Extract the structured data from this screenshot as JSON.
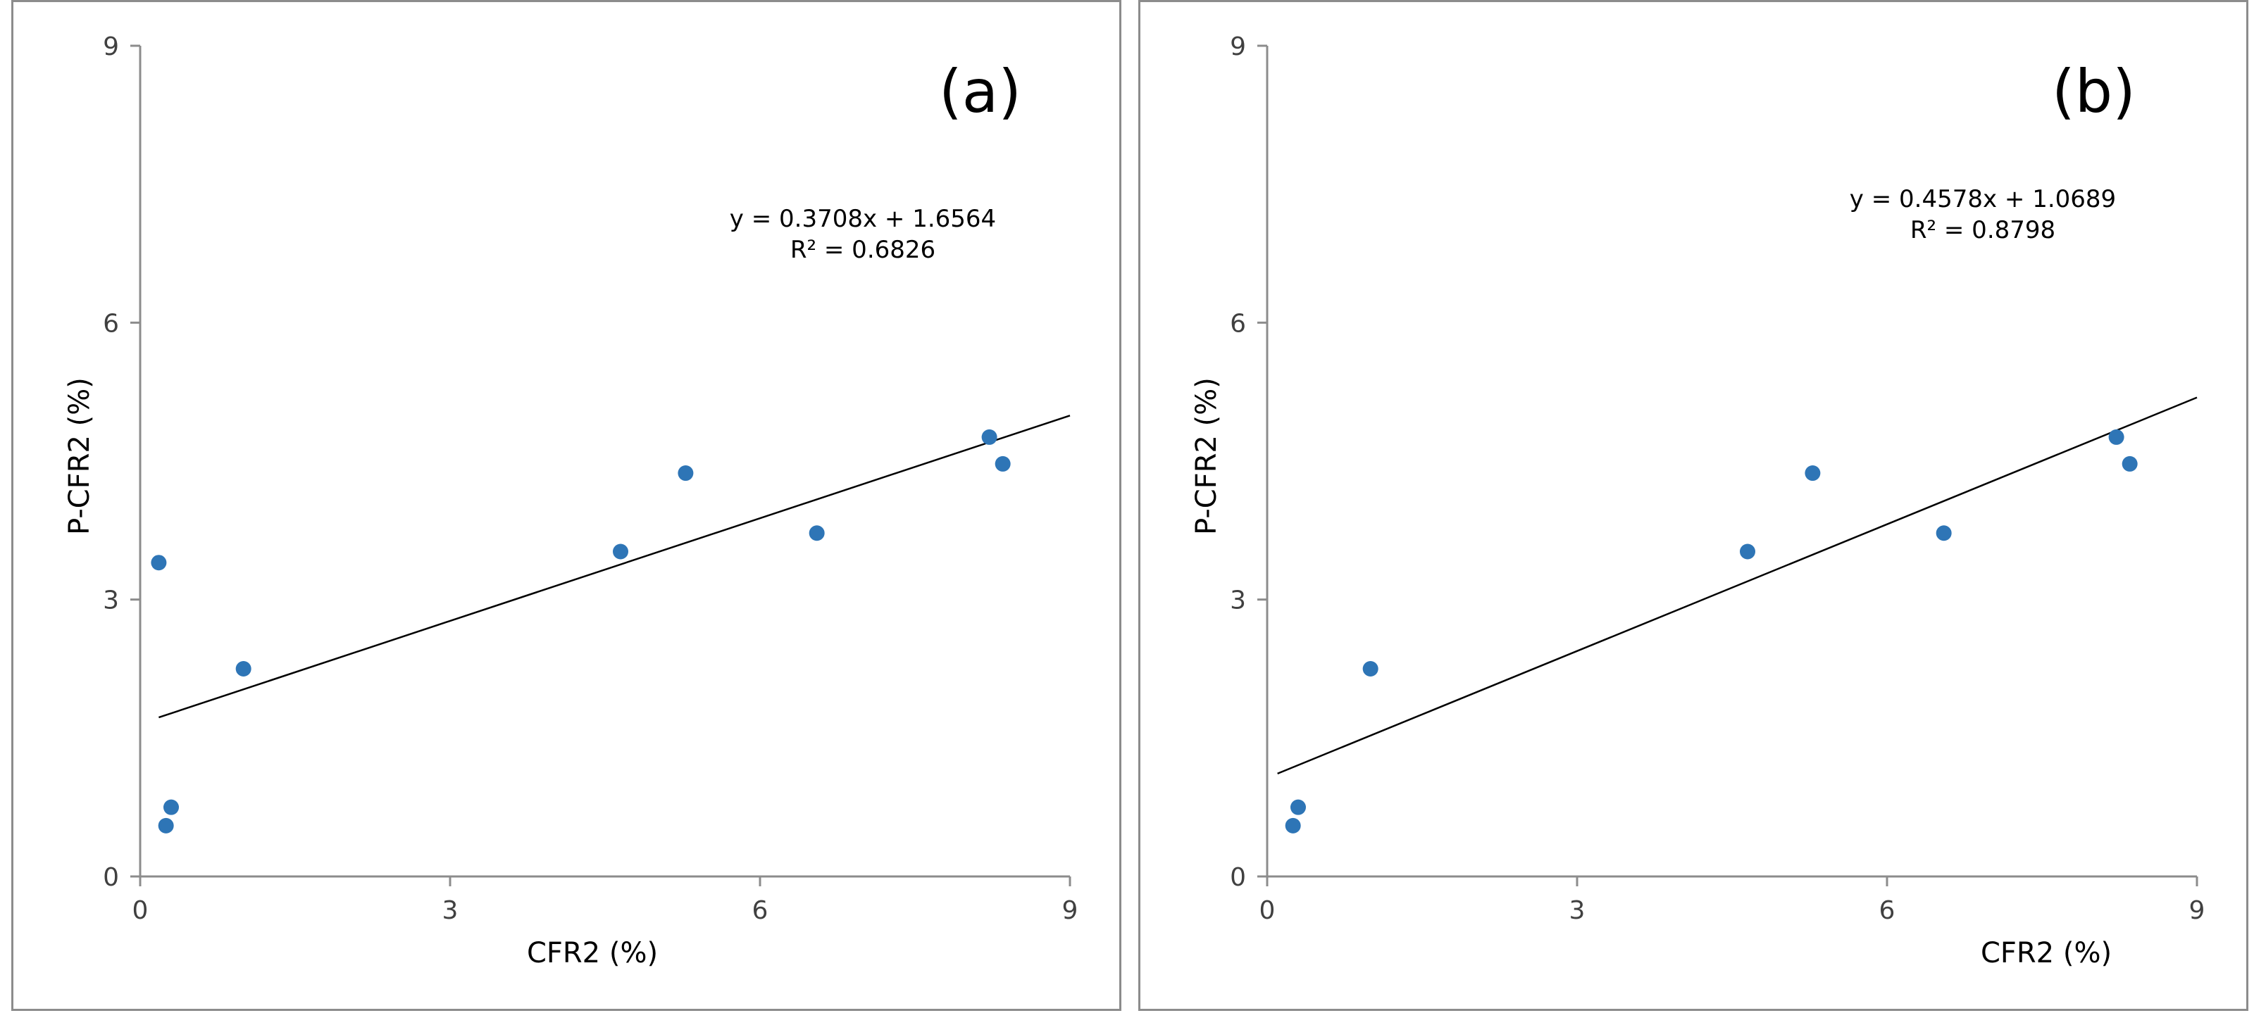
{
  "chart_data": [
    {
      "type": "scatter",
      "panel_label": "(a)",
      "xlabel": "CFR2 (%)",
      "ylabel": "P-CFR2 (%)",
      "xlim": [
        0,
        9
      ],
      "ylim": [
        0,
        9
      ],
      "xticks": [
        0,
        3,
        6,
        9
      ],
      "yticks": [
        0,
        3,
        6,
        9
      ],
      "grid": false,
      "marker_color": "#2e75b6",
      "points": [
        {
          "x": 0.18,
          "y": 3.4
        },
        {
          "x": 0.25,
          "y": 0.55
        },
        {
          "x": 0.3,
          "y": 0.75
        },
        {
          "x": 1.0,
          "y": 2.25
        },
        {
          "x": 4.65,
          "y": 3.52
        },
        {
          "x": 5.28,
          "y": 4.37
        },
        {
          "x": 6.55,
          "y": 3.72
        },
        {
          "x": 8.22,
          "y": 4.76
        },
        {
          "x": 8.35,
          "y": 4.47
        }
      ],
      "trendline": {
        "slope": 0.3708,
        "intercept": 1.6564,
        "x_range": [
          0.18,
          9.0
        ]
      },
      "equation_text": "y = 0.3708x + 1.6564",
      "r2_text": "R² = 0.6826"
    },
    {
      "type": "scatter",
      "panel_label": "(b)",
      "xlabel": "CFR2 (%)",
      "ylabel": "P-CFR2 (%)",
      "xlim": [
        0,
        9
      ],
      "ylim": [
        0,
        9
      ],
      "xticks": [
        0,
        3,
        6,
        9
      ],
      "yticks": [
        0,
        3,
        6,
        9
      ],
      "grid": false,
      "marker_color": "#2e75b6",
      "points": [
        {
          "x": 0.25,
          "y": 0.55
        },
        {
          "x": 0.3,
          "y": 0.75
        },
        {
          "x": 1.0,
          "y": 2.25
        },
        {
          "x": 4.65,
          "y": 3.52
        },
        {
          "x": 5.28,
          "y": 4.37
        },
        {
          "x": 6.55,
          "y": 3.72
        },
        {
          "x": 8.22,
          "y": 4.76
        },
        {
          "x": 8.35,
          "y": 4.47
        }
      ],
      "trendline": {
        "slope": 0.4578,
        "intercept": 1.0689,
        "x_range": [
          0.1,
          9.0
        ]
      },
      "equation_text": "y = 0.4578x + 1.0689",
      "r2_text": "R² = 0.8798"
    }
  ]
}
